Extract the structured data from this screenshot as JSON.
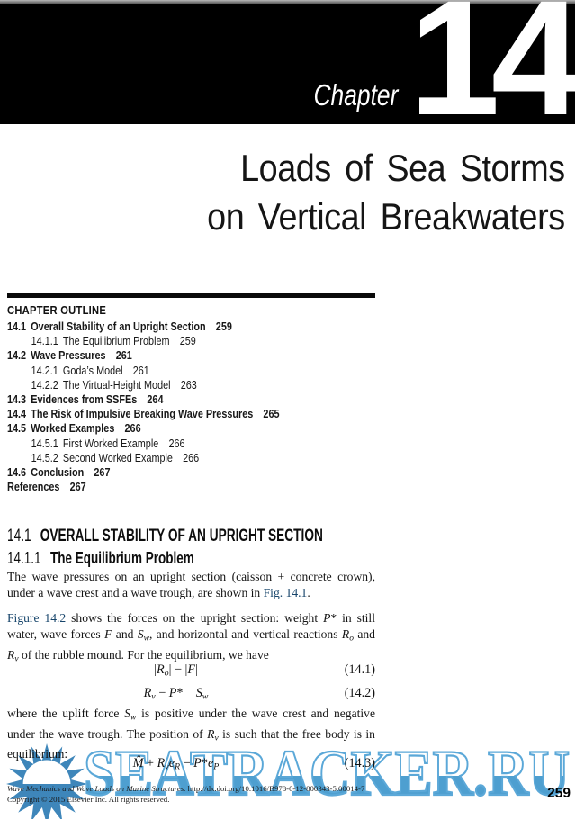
{
  "header": {
    "chapter_label": "Chapter",
    "chapter_number": "14"
  },
  "title": {
    "line1": "Loads of Sea Storms",
    "line2": "on Vertical Breakwaters"
  },
  "outline": {
    "heading": "CHAPTER OUTLINE",
    "items": [
      {
        "num": "14.1",
        "label": "Overall Stability of an Upright Section",
        "page": "259"
      },
      {
        "num": "14.1.1",
        "label": "The Equilibrium Problem",
        "page": "259"
      },
      {
        "num": "14.2",
        "label": "Wave Pressures",
        "page": "261"
      },
      {
        "num": "14.2.1",
        "label": "Goda’s Model",
        "page": "261"
      },
      {
        "num": "14.2.2",
        "label": "The Virtual-Height Model",
        "page": "263"
      },
      {
        "num": "14.3",
        "label": "Evidences from SSFEs",
        "page": "264"
      },
      {
        "num": "14.4",
        "label": "The Risk of Impulsive Breaking Wave Pressures",
        "page": "265"
      },
      {
        "num": "14.5",
        "label": "Worked Examples",
        "page": "266"
      },
      {
        "num": "14.5.1",
        "label": "First Worked Example",
        "page": "266"
      },
      {
        "num": "14.5.2",
        "label": "Second Worked Example",
        "page": "266"
      },
      {
        "num": "14.6",
        "label": "Conclusion",
        "page": "267"
      },
      {
        "num": "",
        "label": "References",
        "page": "267"
      }
    ]
  },
  "sections": {
    "s1": {
      "num": "14.1",
      "title": "OVERALL STABILITY OF AN UPRIGHT SECTION"
    },
    "s2": {
      "num": "14.1.1",
      "title": "The Equilibrium Problem"
    }
  },
  "paragraphs": {
    "p1": [
      {
        "t": "The wave pressures on an upright section (caisson + concrete crown), under a wave crest and a wave trough, are shown in ",
        "c": ""
      },
      {
        "t": "Fig. 14.1",
        "c": "link"
      },
      {
        "t": ".",
        "c": ""
      }
    ],
    "p2": [
      {
        "t": "Figure 14.2",
        "c": "link"
      },
      {
        "t": " shows the forces on the upright section: weight ",
        "c": ""
      },
      {
        "t": "P",
        "c": "i"
      },
      {
        "t": "*",
        "c": ""
      },
      {
        "t": " in still water, wave forces ",
        "c": ""
      },
      {
        "t": "F",
        "c": "i"
      },
      {
        "t": " and ",
        "c": ""
      },
      {
        "t": "S",
        "c": "i"
      },
      {
        "t": "w",
        "c": "i sub"
      },
      {
        "t": ", and horizontal and vertical reactions ",
        "c": ""
      },
      {
        "t": "R",
        "c": "i"
      },
      {
        "t": "o",
        "c": "i sub"
      },
      {
        "t": " and ",
        "c": ""
      },
      {
        "t": "R",
        "c": "i"
      },
      {
        "t": "v",
        "c": "i sub"
      },
      {
        "t": " of the rubble mound. For the equilibrium, we have",
        "c": ""
      }
    ],
    "p3": [
      {
        "t": "where the uplift force ",
        "c": ""
      },
      {
        "t": "S",
        "c": "i"
      },
      {
        "t": "w",
        "c": "i sub"
      },
      {
        "t": " is positive under the wave crest and negative under the wave trough. The position of ",
        "c": ""
      },
      {
        "t": "R",
        "c": "i"
      },
      {
        "t": "v",
        "c": "i sub"
      },
      {
        "t": " is such that the free body is in equilibrium:",
        "c": ""
      }
    ]
  },
  "equations": {
    "eq1": {
      "body": [
        {
          "t": "|",
          "c": ""
        },
        {
          "t": "R",
          "c": "i"
        },
        {
          "t": "o",
          "c": "i sub"
        },
        {
          "t": "| − |",
          "c": ""
        },
        {
          "t": "F",
          "c": "i"
        },
        {
          "t": "|",
          "c": ""
        }
      ],
      "number": "(14.1)"
    },
    "eq2": {
      "body": [
        {
          "t": "R",
          "c": "i"
        },
        {
          "t": "v",
          "c": "i sub"
        },
        {
          "t": " − ",
          "c": ""
        },
        {
          "t": "P",
          "c": "i"
        },
        {
          "t": "*",
          "c": ""
        },
        {
          "t": "  ",
          "c": ""
        },
        {
          "t": "S",
          "c": "i"
        },
        {
          "t": "w",
          "c": "i sub"
        }
      ],
      "number": "(14.2)"
    },
    "eq3": {
      "body": [
        {
          "t": "M̂",
          "c": "i"
        },
        {
          "t": " + ",
          "c": ""
        },
        {
          "t": "R",
          "c": "i"
        },
        {
          "t": "v",
          "c": "i sub"
        },
        {
          "t": "e",
          "c": "i"
        },
        {
          "t": "R",
          "c": "i sub"
        },
        {
          "t": " − ",
          "c": ""
        },
        {
          "t": "P",
          "c": "i"
        },
        {
          "t": "*",
          "c": ""
        },
        {
          "t": "e",
          "c": "i"
        },
        {
          "t": "P",
          "c": "i sub"
        }
      ],
      "number": "(14.3)"
    }
  },
  "watermark": {
    "text": "SEATRACKER.RU",
    "stroke_color": "#5ba8d8",
    "fill_color": "#4e9fd0",
    "sun_color": "#3e86ba"
  },
  "footer": {
    "book_title": "Wave Mechanics and Wave Loads on Marine Structures.",
    "doi": "http://dx.doi.org/10.1016/B978-0-12-800343-5.00014-7",
    "copyright": "Copyright © 2015 Elsevier Inc. All rights reserved.",
    "page_number": "259"
  }
}
